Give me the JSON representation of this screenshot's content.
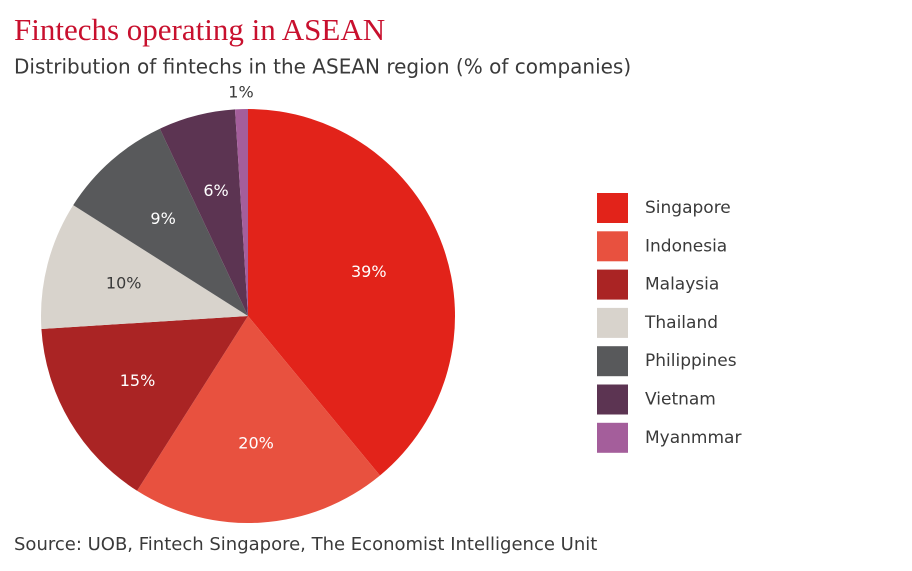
{
  "chart_data": {
    "type": "pie",
    "title": "Fintechs operating in ASEAN",
    "subtitle": "Distribution of fintechs in the ASEAN region (% of companies)",
    "source": "Source: UOB, Fintech Singapore, The Economist Intelligence Unit",
    "categories": [
      "Singapore",
      "Indonesia",
      "Malaysia",
      "Thailand",
      "Philippines",
      "Vietnam",
      "Myanmmar"
    ],
    "values": [
      39,
      20,
      15,
      10,
      9,
      6,
      1
    ],
    "value_labels": [
      "39%",
      "20%",
      "15%",
      "10%",
      "9%",
      "6%",
      "1%"
    ],
    "colors": [
      "#e2231a",
      "#e8513f",
      "#aa2424",
      "#d8d3cc",
      "#58595b",
      "#5c3452",
      "#a45e9b"
    ],
    "legend": "right"
  }
}
